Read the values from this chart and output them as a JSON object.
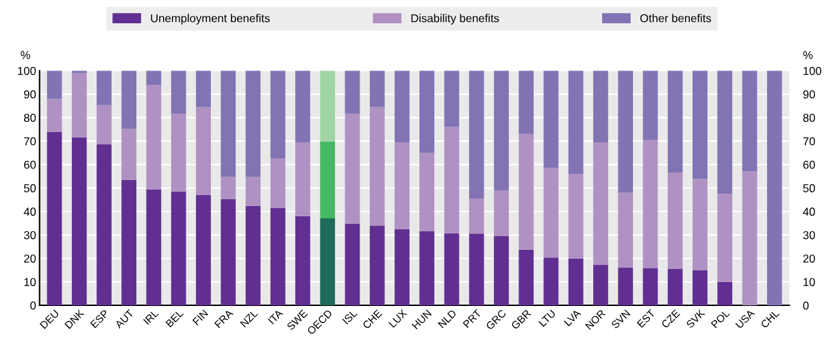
{
  "chart_data": {
    "type": "bar",
    "stacked": true,
    "categories": [
      "DEU",
      "DNK",
      "ESP",
      "AUT",
      "IRL",
      "BEL",
      "FIN",
      "FRA",
      "NZL",
      "ITA",
      "SWE",
      "OECD",
      "ISL",
      "CHE",
      "LUX",
      "HUN",
      "NLD",
      "PRT",
      "GRC",
      "GBR",
      "LTU",
      "LVA",
      "NOR",
      "SVN",
      "EST",
      "CZE",
      "SVK",
      "POL",
      "USA",
      "CHL"
    ],
    "series": [
      {
        "name": "Unemployment benefits",
        "color": "#612f91",
        "colors": [
          "#612f91",
          "#612f91",
          "#612f91",
          "#612f91",
          "#612f91",
          "#612f91",
          "#612f91",
          "#612f91",
          "#612f91",
          "#612f91",
          "#612f91",
          "#1e6b5a",
          "#612f91",
          "#612f91",
          "#612f91",
          "#612f91",
          "#612f91",
          "#612f91",
          "#612f91",
          "#612f91",
          "#612f91",
          "#612f91",
          "#612f91",
          "#612f91",
          "#612f91",
          "#612f91",
          "#612f91",
          "#612f91",
          "#612f91",
          "#612f91"
        ],
        "values": [
          74,
          71.5,
          68.7,
          53.5,
          49.3,
          48.5,
          47,
          45.3,
          42.4,
          41.6,
          38,
          37.1,
          34.8,
          34,
          32.5,
          31.5,
          30.7,
          30.6,
          29.5,
          23.7,
          20.4,
          20,
          17.2,
          16.1,
          15.9,
          15.5,
          14.9,
          10,
          0,
          0
        ]
      },
      {
        "name": "Disability benefits",
        "color": "#b091c3",
        "colors": [
          "#b091c3",
          "#b091c3",
          "#b091c3",
          "#b091c3",
          "#b091c3",
          "#b091c3",
          "#b091c3",
          "#b091c3",
          "#b091c3",
          "#b091c3",
          "#b091c3",
          "#47b862",
          "#b091c3",
          "#b091c3",
          "#b091c3",
          "#b091c3",
          "#b091c3",
          "#b091c3",
          "#b091c3",
          "#b091c3",
          "#b091c3",
          "#b091c3",
          "#b091c3",
          "#b091c3",
          "#b091c3",
          "#b091c3",
          "#b091c3",
          "#b091c3",
          "#b091c3",
          "#b091c3"
        ],
        "values": [
          14,
          27.5,
          16.6,
          21.7,
          44.6,
          33.1,
          37.5,
          9.4,
          12.3,
          20.9,
          31.4,
          32.8,
          46.8,
          50.5,
          36.9,
          33.4,
          45.3,
          14.9,
          19.4,
          49.3,
          38.1,
          36,
          52.2,
          31.9,
          54.5,
          41.1,
          39,
          37.5,
          57.1,
          0
        ]
      },
      {
        "name": "Other benefits",
        "color": "#8274b4",
        "colors": [
          "#8274b4",
          "#8274b4",
          "#8274b4",
          "#8274b4",
          "#8274b4",
          "#8274b4",
          "#8274b4",
          "#8274b4",
          "#8274b4",
          "#8274b4",
          "#8274b4",
          "#a0d4a4",
          "#8274b4",
          "#8274b4",
          "#8274b4",
          "#8274b4",
          "#8274b4",
          "#8274b4",
          "#8274b4",
          "#8274b4",
          "#8274b4",
          "#8274b4",
          "#8274b4",
          "#8274b4",
          "#8274b4",
          "#8274b4",
          "#8274b4",
          "#8274b4",
          "#8274b4",
          "#8274b4"
        ],
        "values": [
          12,
          1,
          14.7,
          24.8,
          6.1,
          18.4,
          15.5,
          45.3,
          45.3,
          37.5,
          30.6,
          30.1,
          18.4,
          15.5,
          30.6,
          35.1,
          24,
          54.5,
          51.1,
          27,
          41.5,
          44,
          30.6,
          52,
          29.6,
          43.4,
          46.1,
          52.5,
          42.9,
          100
        ]
      }
    ],
    "ylabel": "%",
    "y2label": "%",
    "ylim": [
      0,
      100
    ],
    "yticks": [
      0,
      10,
      20,
      30,
      40,
      50,
      60,
      70,
      80,
      90,
      100
    ],
    "y2lim": [
      0,
      100
    ],
    "y2ticks": [
      0,
      10,
      20,
      30,
      40,
      50,
      60,
      70,
      80,
      90,
      100
    ],
    "grid": "y",
    "legend": "top"
  }
}
